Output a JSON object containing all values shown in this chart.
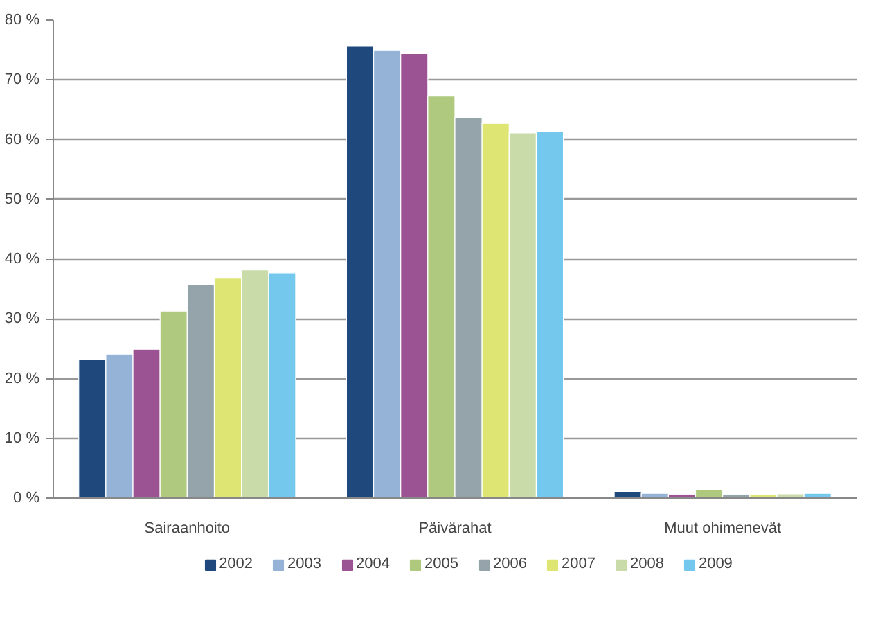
{
  "chart_data": {
    "type": "bar",
    "categories": [
      "Sairaanhoito",
      "Päivärahat",
      "Muut ohimenevät"
    ],
    "series": [
      {
        "name": "2002",
        "color": "#1f497d",
        "values": [
          23.2,
          75.6,
          1.1
        ]
      },
      {
        "name": "2003",
        "color": "#95b3d7",
        "values": [
          24.1,
          75.0,
          0.8
        ]
      },
      {
        "name": "2004",
        "color": "#9b5393",
        "values": [
          24.9,
          74.4,
          0.6
        ]
      },
      {
        "name": "2005",
        "color": "#afc97f",
        "values": [
          31.3,
          67.3,
          1.4
        ]
      },
      {
        "name": "2006",
        "color": "#95a3aa",
        "values": [
          35.7,
          63.7,
          0.6
        ]
      },
      {
        "name": "2007",
        "color": "#dfe572",
        "values": [
          36.8,
          62.7,
          0.6
        ]
      },
      {
        "name": "2008",
        "color": "#c8dba8",
        "values": [
          38.2,
          61.1,
          0.7
        ]
      },
      {
        "name": "2009",
        "color": "#74c8ee",
        "values": [
          37.7,
          61.4,
          0.8
        ]
      }
    ],
    "ylim": [
      0,
      80
    ],
    "yticks": [
      {
        "value": 0,
        "label": "0 %"
      },
      {
        "value": 10,
        "label": "10 %"
      },
      {
        "value": 20,
        "label": "20 %"
      },
      {
        "value": 30,
        "label": "30 %"
      },
      {
        "value": 40,
        "label": "40 %"
      },
      {
        "value": 50,
        "label": "50 %"
      },
      {
        "value": 60,
        "label": "60 %"
      },
      {
        "value": 70,
        "label": "70 %"
      },
      {
        "value": 80,
        "label": "80 %"
      }
    ],
    "grid": "y",
    "legend": "bottom"
  }
}
